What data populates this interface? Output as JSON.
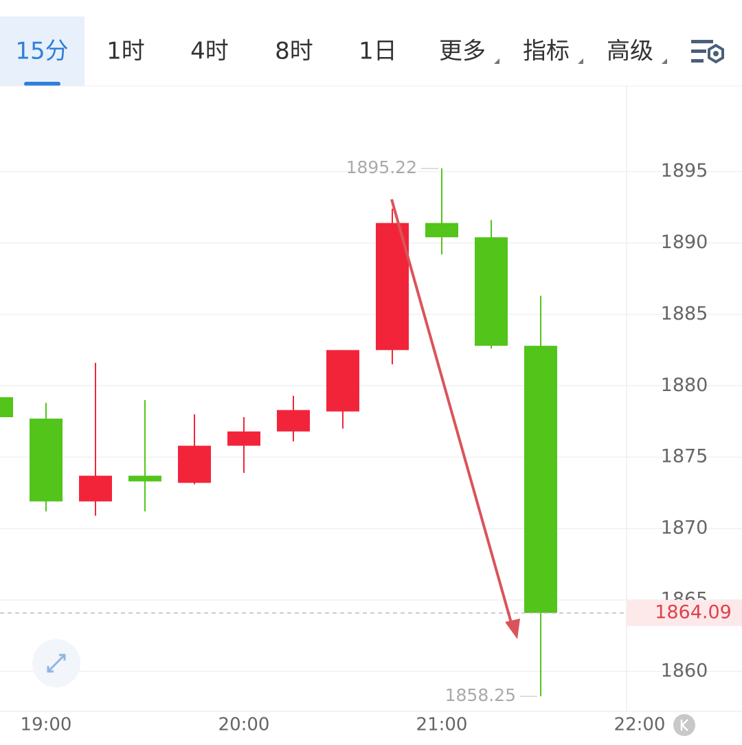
{
  "tabs": [
    "15分",
    "1时",
    "4时",
    "8时",
    "1日",
    "更多",
    "指标",
    "高级"
  ],
  "active_tab": 0,
  "chart_data": {
    "type": "candlestick",
    "categories": [
      null,
      "19:00",
      null,
      null,
      null,
      "20:00",
      null,
      null,
      null,
      "21:00",
      null,
      null,
      null,
      "22:00"
    ],
    "open": [
      1879.2,
      1877.7,
      1871.9,
      1873.7,
      1873.2,
      1875.8,
      1876.8,
      1878.2,
      1882.5,
      1891.4,
      1890.4,
      1882.8,
      null,
      null
    ],
    "high": [
      1879.2,
      1878.8,
      1881.6,
      1879.0,
      1878.0,
      1877.8,
      1879.3,
      1882.5,
      1892.4,
      1895.22,
      1891.6,
      1886.3,
      null,
      null
    ],
    "low": [
      1877.8,
      1871.2,
      1870.9,
      1871.2,
      1873.1,
      1873.9,
      1876.1,
      1877.0,
      1881.5,
      1889.2,
      1882.6,
      1858.25,
      null,
      null
    ],
    "close": [
      1877.8,
      1871.9,
      1873.7,
      1873.3,
      1875.8,
      1876.8,
      1878.3,
      1882.5,
      1891.4,
      1890.4,
      1882.8,
      1864.09,
      null,
      null
    ],
    "up_color": "#f2243a",
    "down_color": "#52c41a",
    "ylim": [
      1857.2,
      1901
    ],
    "yticks": [
      1860,
      1865,
      1870,
      1875,
      1880,
      1885,
      1890,
      1895
    ],
    "grid": true
  }
}
